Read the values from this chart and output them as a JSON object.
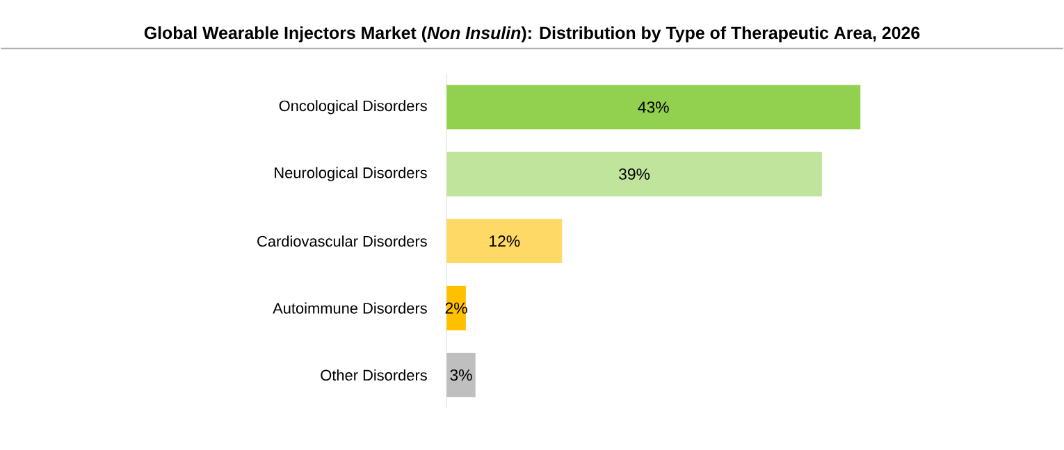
{
  "chart_data": {
    "type": "bar",
    "orientation": "horizontal",
    "title": "Global Wearable Injectors Market (*Non Insulin*): Distribution by Type of Therapeutic Area, 2026",
    "categories": [
      "Oncological Disorders",
      "Neurological Disorders",
      "Cardiovascular Disorders",
      "Autoimmune Disorders",
      "Other Disorders"
    ],
    "values": [
      43,
      39,
      12,
      2,
      3
    ],
    "colors": [
      "#92d050",
      "#c0e49c",
      "#ffd966",
      "#ffc000",
      "#bfbfbf"
    ],
    "value_labels": [
      "43%",
      "39%",
      "12%",
      "2%",
      "3%"
    ]
  }
}
